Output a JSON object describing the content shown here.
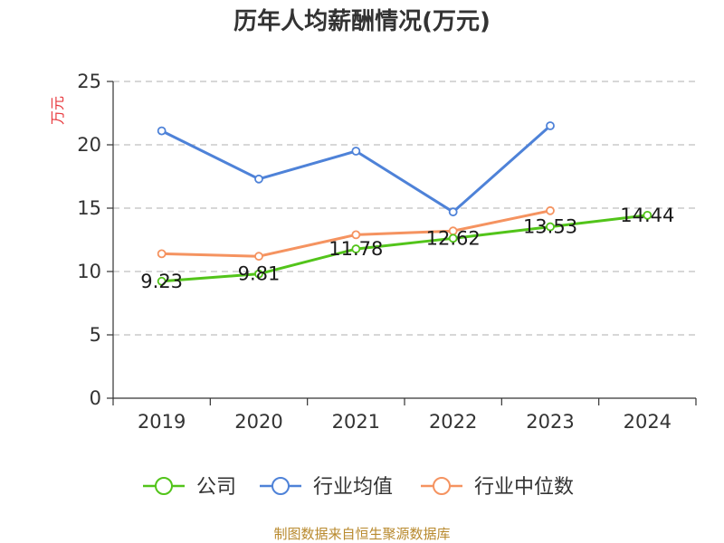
{
  "chart_data": {
    "type": "line",
    "title": "历年人均薪酬情况(万元)",
    "ylabel": "万元",
    "xlabel": "",
    "ylim": [
      0,
      25
    ],
    "yticks": [
      0,
      5,
      10,
      15,
      20,
      25
    ],
    "categories": [
      "2019",
      "2020",
      "2021",
      "2022",
      "2023",
      "2024"
    ],
    "grid": true,
    "legend_position": "bottom",
    "series": [
      {
        "name": "公司",
        "color": "#52c41a",
        "values": [
          9.23,
          9.81,
          11.78,
          12.62,
          13.53,
          14.44
        ],
        "labels": [
          "9.23",
          "9.81",
          "11.78",
          "12.62",
          "13.53",
          "14.44"
        ]
      },
      {
        "name": "行业均值",
        "color": "#4e82d8",
        "values": [
          21.1,
          17.3,
          19.5,
          14.7,
          21.5,
          null
        ]
      },
      {
        "name": "行业中位数",
        "color": "#f59360",
        "values": [
          11.4,
          11.2,
          12.9,
          13.2,
          14.8,
          null
        ]
      }
    ],
    "source": "制图数据来自恒生聚源数据库"
  }
}
